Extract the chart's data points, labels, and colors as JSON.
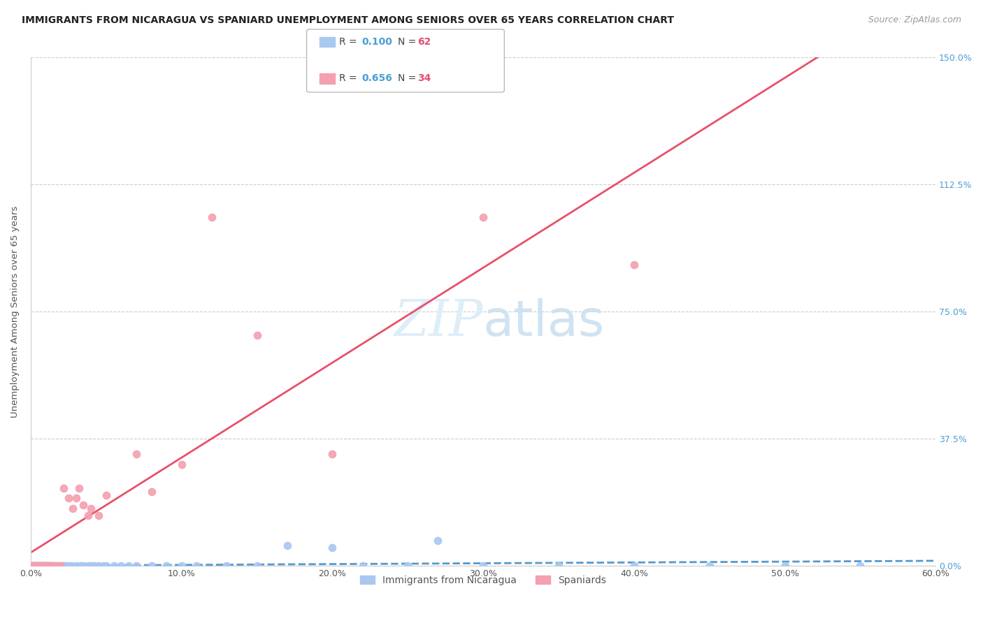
{
  "title": "IMMIGRANTS FROM NICARAGUA VS SPANIARD UNEMPLOYMENT AMONG SENIORS OVER 65 YEARS CORRELATION CHART",
  "source": "Source: ZipAtlas.com",
  "ylabel": "Unemployment Among Seniors over 65 years",
  "series": [
    {
      "name": "Immigrants from Nicaragua",
      "R": 0.1,
      "N": 62,
      "color": "#a8c8f0",
      "line_color": "#5599cc",
      "line_style": "--",
      "x": [
        0.001,
        0.002,
        0.002,
        0.003,
        0.003,
        0.004,
        0.004,
        0.005,
        0.005,
        0.006,
        0.006,
        0.007,
        0.007,
        0.008,
        0.008,
        0.009,
        0.01,
        0.01,
        0.011,
        0.012,
        0.013,
        0.014,
        0.015,
        0.016,
        0.017,
        0.018,
        0.02,
        0.021,
        0.022,
        0.023,
        0.025,
        0.027,
        0.03,
        0.033,
        0.035,
        0.038,
        0.04,
        0.042,
        0.045,
        0.048,
        0.05,
        0.055,
        0.06,
        0.065,
        0.07,
        0.08,
        0.09,
        0.1,
        0.11,
        0.13,
        0.15,
        0.17,
        0.2,
        0.22,
        0.25,
        0.27,
        0.3,
        0.35,
        0.4,
        0.45,
        0.5,
        0.55
      ],
      "y": [
        0.0,
        0.0,
        0.0,
        0.0,
        0.0,
        0.0,
        0.0,
        0.0,
        0.0,
        0.0,
        0.0,
        0.0,
        0.0,
        0.0,
        0.0,
        0.0,
        0.0,
        0.0,
        0.0,
        0.0,
        0.0,
        0.0,
        0.0,
        0.0,
        0.0,
        0.0,
        0.0,
        0.0,
        0.0,
        0.0,
        0.0,
        0.0,
        0.0,
        0.0,
        0.0,
        0.0,
        0.0,
        0.0,
        0.0,
        0.0,
        0.0,
        0.0,
        0.0,
        0.0,
        0.0,
        0.0,
        0.0,
        0.0,
        0.0,
        0.0,
        0.0,
        0.06,
        0.055,
        0.0,
        0.0,
        0.075,
        0.0,
        0.0,
        0.0,
        0.0,
        0.0,
        0.0
      ]
    },
    {
      "name": "Spaniards",
      "R": 0.656,
      "N": 34,
      "color": "#f4a0b0",
      "line_color": "#e8506a",
      "line_style": "-",
      "x": [
        0.001,
        0.002,
        0.003,
        0.004,
        0.005,
        0.006,
        0.007,
        0.008,
        0.009,
        0.01,
        0.011,
        0.012,
        0.013,
        0.015,
        0.017,
        0.02,
        0.022,
        0.025,
        0.028,
        0.03,
        0.032,
        0.035,
        0.038,
        0.04,
        0.045,
        0.05,
        0.07,
        0.08,
        0.1,
        0.12,
        0.15,
        0.2,
        0.3,
        0.4
      ],
      "y": [
        0.0,
        0.0,
        0.0,
        0.0,
        0.0,
        0.0,
        0.0,
        0.0,
        0.0,
        0.0,
        0.0,
        0.0,
        0.0,
        0.0,
        0.0,
        0.0,
        0.23,
        0.2,
        0.17,
        0.2,
        0.23,
        0.18,
        0.15,
        0.17,
        0.15,
        0.21,
        0.33,
        0.22,
        0.3,
        1.03,
        0.68,
        0.33,
        1.03,
        0.89
      ]
    }
  ],
  "xlim": [
    0.0,
    0.6
  ],
  "ylim": [
    0.0,
    1.5
  ],
  "xticks": [
    0.0,
    0.1,
    0.2,
    0.3,
    0.4,
    0.5,
    0.6
  ],
  "xtick_labels": [
    "0.0%",
    "10.0%",
    "20.0%",
    "30.0%",
    "40.0%",
    "50.0%",
    "60.0%"
  ],
  "yticks": [
    0.0,
    0.375,
    0.75,
    1.125,
    1.5
  ],
  "ytick_labels": [
    "0.0%",
    "37.5%",
    "75.0%",
    "112.5%",
    "150.0%"
  ],
  "grid_color": "#cccccc",
  "background_color": "#ffffff",
  "legend_R_color": "#4a9fd4",
  "legend_N_color": "#e05070",
  "watermark_color": "#ddeef8"
}
